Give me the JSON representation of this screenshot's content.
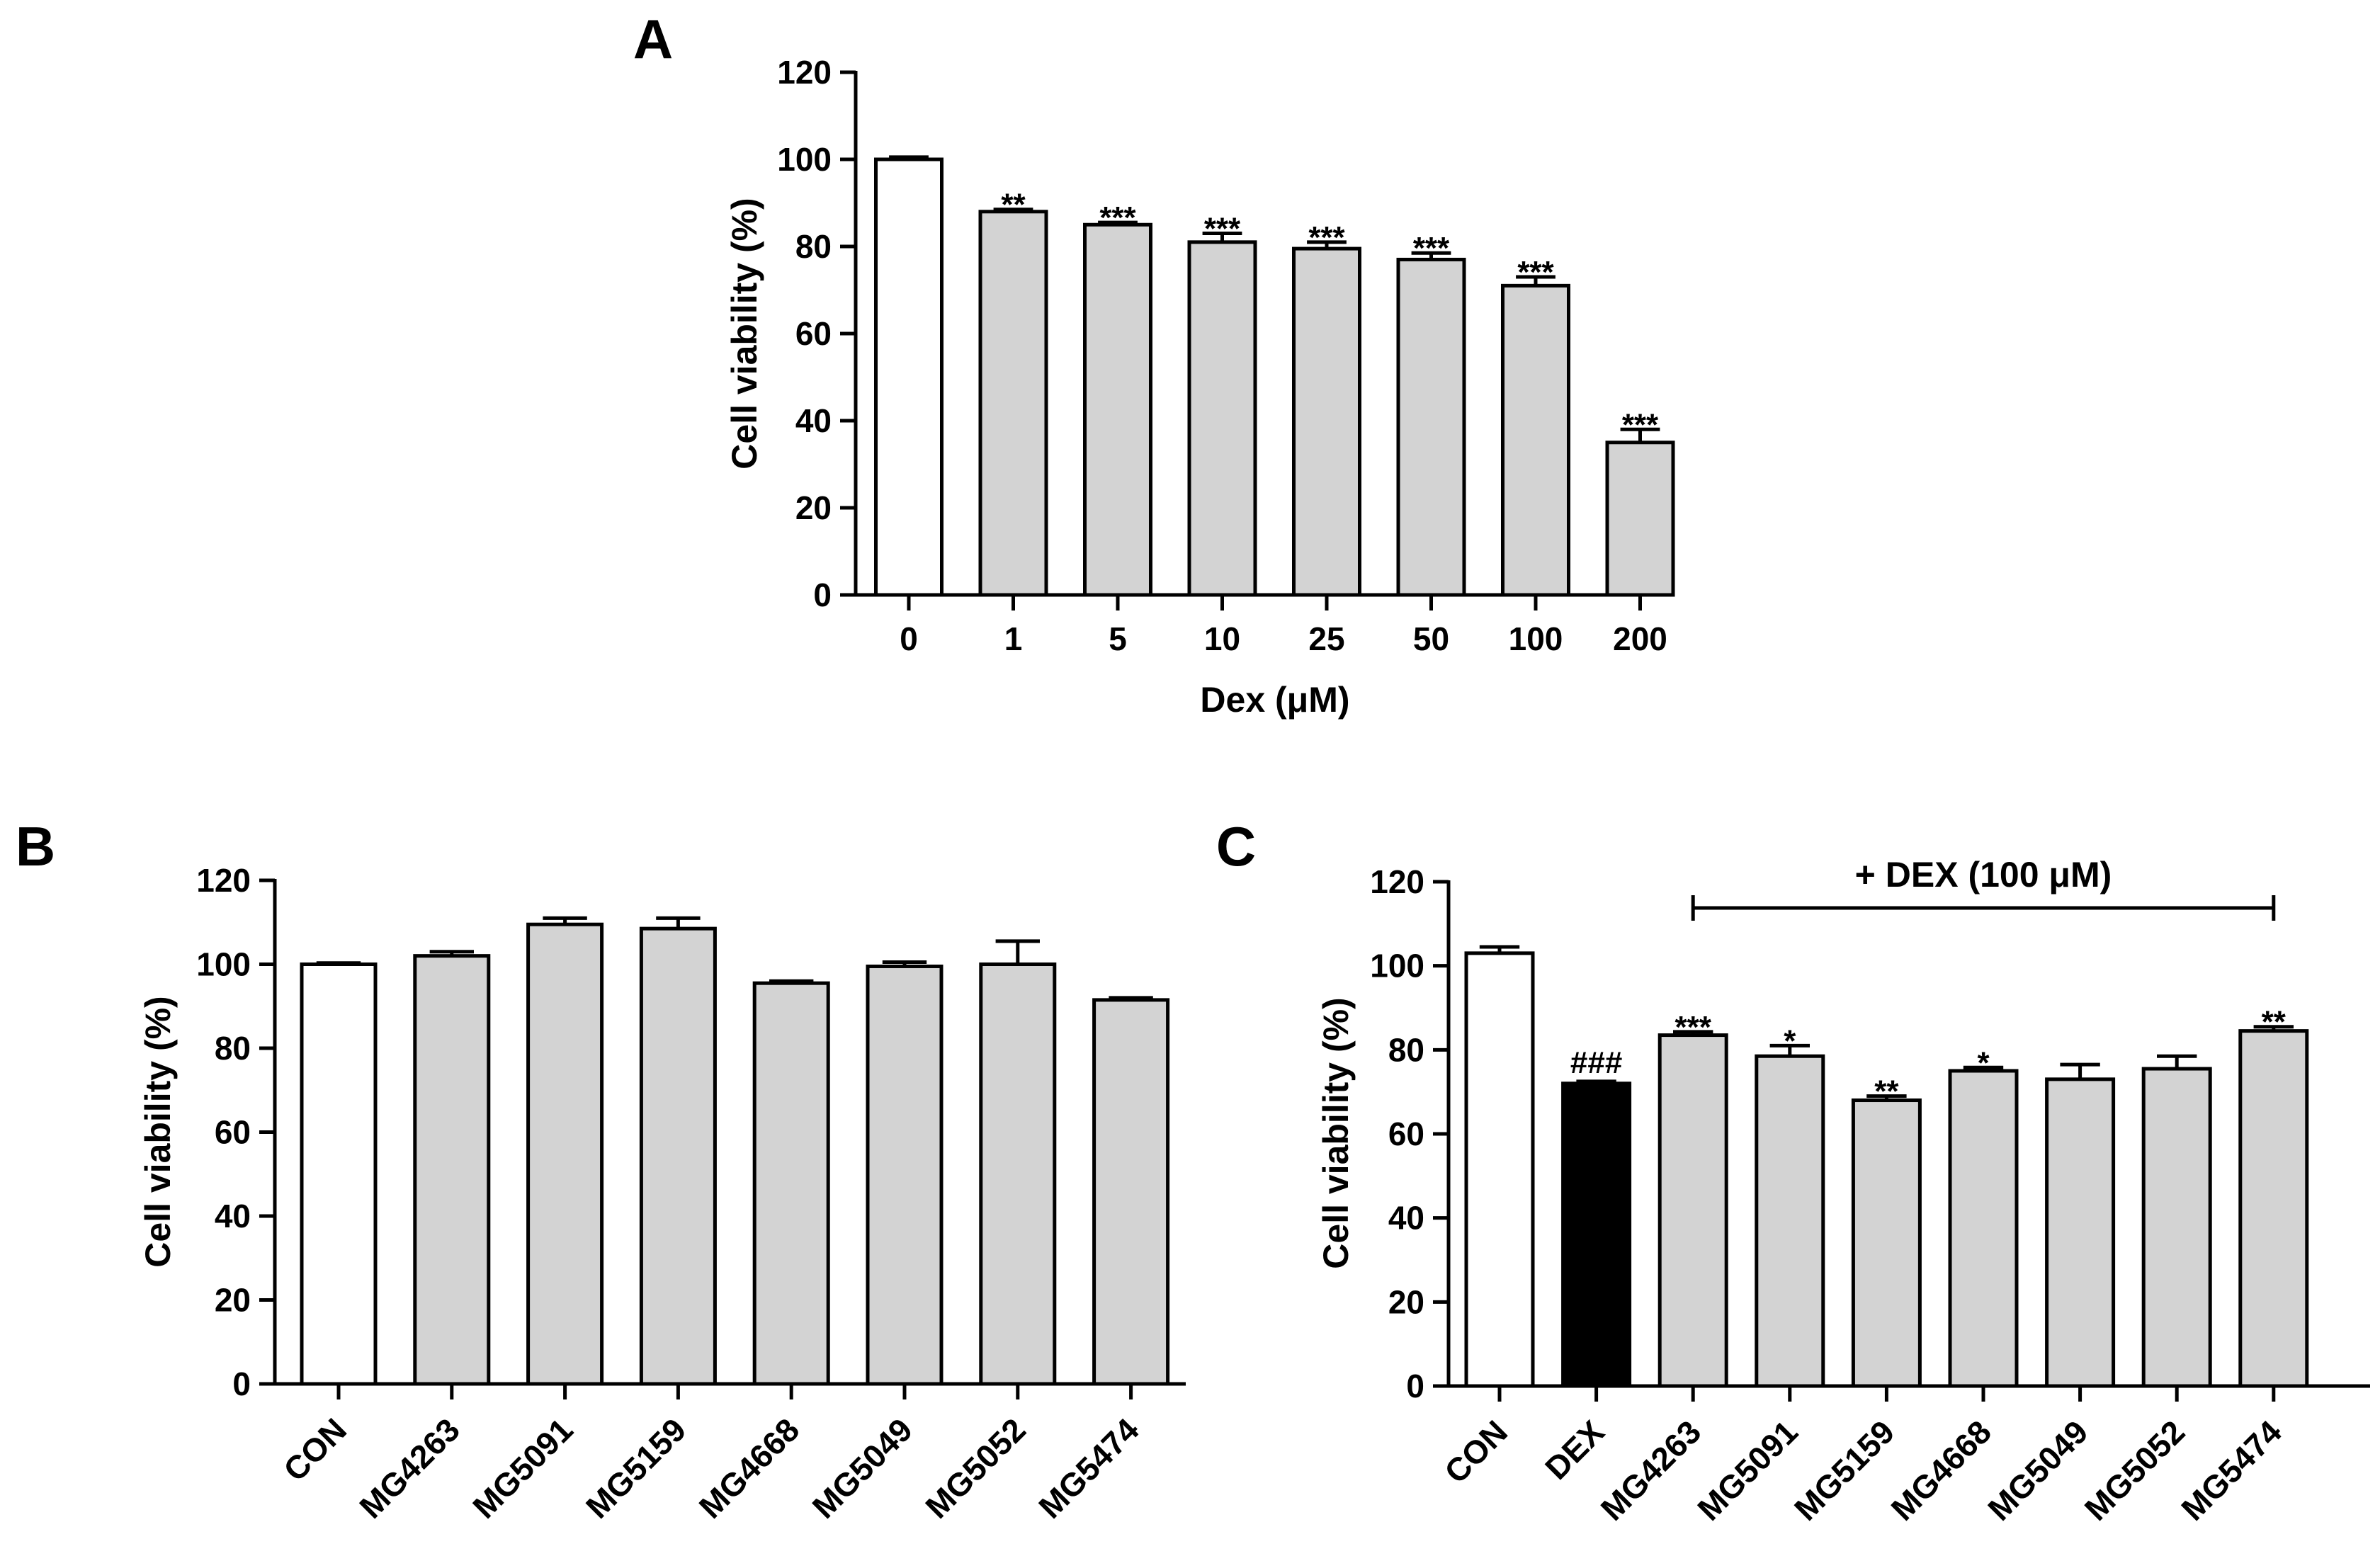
{
  "chart_data": [
    {
      "panel": "A",
      "type": "bar",
      "xlabel": "Dex (μM)",
      "ylabel": "Cell viability (%)",
      "ylim": [
        0,
        120
      ],
      "yticks": [
        0,
        20,
        40,
        60,
        80,
        100,
        120
      ],
      "categories": [
        "0",
        "1",
        "5",
        "10",
        "25",
        "50",
        "100",
        "200"
      ],
      "values": [
        100,
        88,
        85,
        81,
        79.5,
        77,
        71,
        35
      ],
      "errors": [
        0.5,
        0.5,
        0.5,
        2,
        1.5,
        1.5,
        2,
        3
      ],
      "fills": [
        "#ffffff",
        "#d3d3d3",
        "#d3d3d3",
        "#d3d3d3",
        "#d3d3d3",
        "#d3d3d3",
        "#d3d3d3",
        "#d3d3d3"
      ],
      "significance": [
        "",
        "**",
        "***",
        "***",
        "***",
        "***",
        "***",
        "***"
      ]
    },
    {
      "panel": "B",
      "type": "bar",
      "xlabel": "",
      "ylabel": "Cell viability (%)",
      "ylim": [
        0,
        120
      ],
      "yticks": [
        0,
        20,
        40,
        60,
        80,
        100,
        120
      ],
      "categories": [
        "CON",
        "MG4263",
        "MG5091",
        "MG5159",
        "MG4668",
        "MG5049",
        "MG5052",
        "MG5474"
      ],
      "values": [
        100,
        102,
        109.5,
        108.5,
        95.5,
        99.5,
        100,
        91.5
      ],
      "errors": [
        0.3,
        1,
        1.5,
        2.5,
        0.5,
        1,
        5.5,
        0.5
      ],
      "fills": [
        "#ffffff",
        "#d3d3d3",
        "#d3d3d3",
        "#d3d3d3",
        "#d3d3d3",
        "#d3d3d3",
        "#d3d3d3",
        "#d3d3d3"
      ],
      "significance": [
        "",
        "",
        "",
        "",
        "",
        "",
        "",
        ""
      ]
    },
    {
      "panel": "C",
      "type": "bar",
      "xlabel": "",
      "ylabel": "Cell viability (%)",
      "ylim": [
        0,
        120
      ],
      "yticks": [
        0,
        20,
        40,
        60,
        80,
        100,
        120
      ],
      "categories": [
        "CON",
        "DEX",
        "MG4263",
        "MG5091",
        "MG5159",
        "MG4668",
        "MG5049",
        "MG5052",
        "MG5474"
      ],
      "values": [
        103,
        72,
        83.5,
        78.5,
        68,
        75,
        73,
        75.5,
        84.5
      ],
      "errors": [
        1.5,
        0.5,
        0.8,
        2.5,
        1,
        0.8,
        3.5,
        3,
        1
      ],
      "fills": [
        "#ffffff",
        "#000000",
        "#d3d3d3",
        "#d3d3d3",
        "#d3d3d3",
        "#d3d3d3",
        "#d3d3d3",
        "#d3d3d3",
        "#d3d3d3"
      ],
      "significance": [
        "",
        "###",
        "***",
        "*",
        "**",
        "*",
        "",
        "",
        "**"
      ],
      "bracket": {
        "label": "+ DEX (100 μM)",
        "from_category": "MG4263",
        "to_category": "MG5474"
      }
    }
  ]
}
